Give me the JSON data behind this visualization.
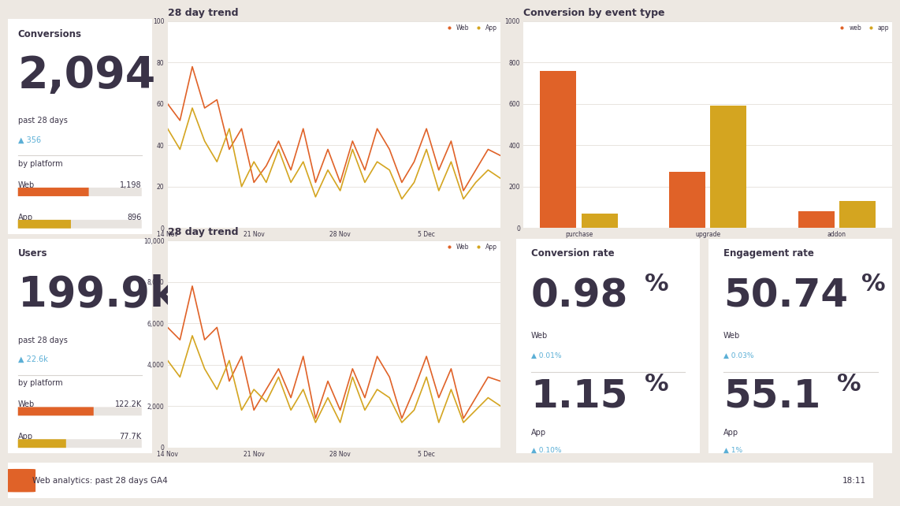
{
  "bg_color": "#ede8e2",
  "card_color": "#ffffff",
  "text_dark": "#3a3347",
  "blue_arrow": "#5bafd6",
  "web_color": "#e06228",
  "app_color": "#d4a520",
  "conv_title": "Conversions",
  "conv_value": "2,094",
  "conv_period": "past 28 days",
  "conv_delta": "▲ 356",
  "conv_web_label": "Web",
  "conv_web_value": "1,198",
  "conv_web_num": 1198,
  "conv_app_label": "App",
  "conv_app_value": "896",
  "conv_app_num": 896,
  "users_title": "Users",
  "users_value": "199.9k",
  "users_period": "past 28 days",
  "users_delta": "▲ 22.6k",
  "users_web_label": "Web",
  "users_web_value": "122.2K",
  "users_web_num": 122.2,
  "users_app_label": "App",
  "users_app_value": "77.7K",
  "users_app_num": 77.7,
  "trend1_title": "28 day trend",
  "trend1_xlabels": [
    "14 Nov",
    "21 Nov",
    "28 Nov",
    "5 Dec"
  ],
  "trend1_yticks": [
    0,
    20,
    40,
    60,
    80,
    100
  ],
  "trend1_web": [
    60,
    52,
    78,
    58,
    62,
    38,
    48,
    22,
    30,
    42,
    28,
    48,
    22,
    38,
    22,
    42,
    28,
    48,
    38,
    22,
    32,
    48,
    28,
    42,
    18,
    28,
    38,
    35
  ],
  "trend1_app": [
    48,
    38,
    58,
    42,
    32,
    48,
    20,
    32,
    22,
    38,
    22,
    32,
    15,
    28,
    18,
    38,
    22,
    32,
    28,
    14,
    22,
    38,
    18,
    32,
    14,
    22,
    28,
    24
  ],
  "trend2_title": "28 day trend",
  "trend2_xlabels": [
    "14 Nov",
    "21 Nov",
    "28 Nov",
    "5 Dec"
  ],
  "trend2_yticks": [
    0,
    2000,
    4000,
    6000,
    8000,
    10000
  ],
  "trend2_web": [
    5800,
    5200,
    7800,
    5200,
    5800,
    3200,
    4400,
    1800,
    2800,
    3800,
    2400,
    4400,
    1400,
    3200,
    1800,
    3800,
    2400,
    4400,
    3400,
    1400,
    2800,
    4400,
    2400,
    3800,
    1400,
    2400,
    3400,
    3200
  ],
  "trend2_app": [
    4200,
    3400,
    5400,
    3800,
    2800,
    4200,
    1800,
    2800,
    2200,
    3400,
    1800,
    2800,
    1200,
    2400,
    1200,
    3400,
    1800,
    2800,
    2400,
    1200,
    1800,
    3400,
    1200,
    2800,
    1200,
    1800,
    2400,
    2000
  ],
  "conv_event_title": "Conversion by event type",
  "conv_event_yticks": [
    0,
    200,
    400,
    600,
    800,
    1000
  ],
  "conv_event_categories": [
    "purchase",
    "upgrade",
    "addon"
  ],
  "conv_event_web": [
    760,
    270,
    80
  ],
  "conv_event_app": [
    70,
    590,
    130
  ],
  "conv_rate_title": "Conversion rate",
  "conv_rate_web_value": "0.98",
  "conv_rate_web_pct": "%",
  "conv_rate_web_label": "Web",
  "conv_rate_web_delta": "▲ 0.01%",
  "conv_rate_app_value": "1.15",
  "conv_rate_app_pct": "%",
  "conv_rate_app_label": "App",
  "conv_rate_app_delta": "▲ 0.10%",
  "engage_title": "Engagement rate",
  "engage_web_value": "50.74",
  "engage_web_pct": "%",
  "engage_web_label": "Web",
  "engage_web_delta": "▲ 0.03%",
  "engage_app_value": "55.1",
  "engage_app_pct": "%",
  "engage_app_label": "App",
  "engage_app_delta": "▲ 1%",
  "footer_left": "Web analytics: past 28 days GA4",
  "footer_right": "18:11",
  "logo_color": "#e06228",
  "bar_bg_color": "#e8e4e0",
  "grid_color": "#e8e4df",
  "sep_color": "#d8d4d0"
}
